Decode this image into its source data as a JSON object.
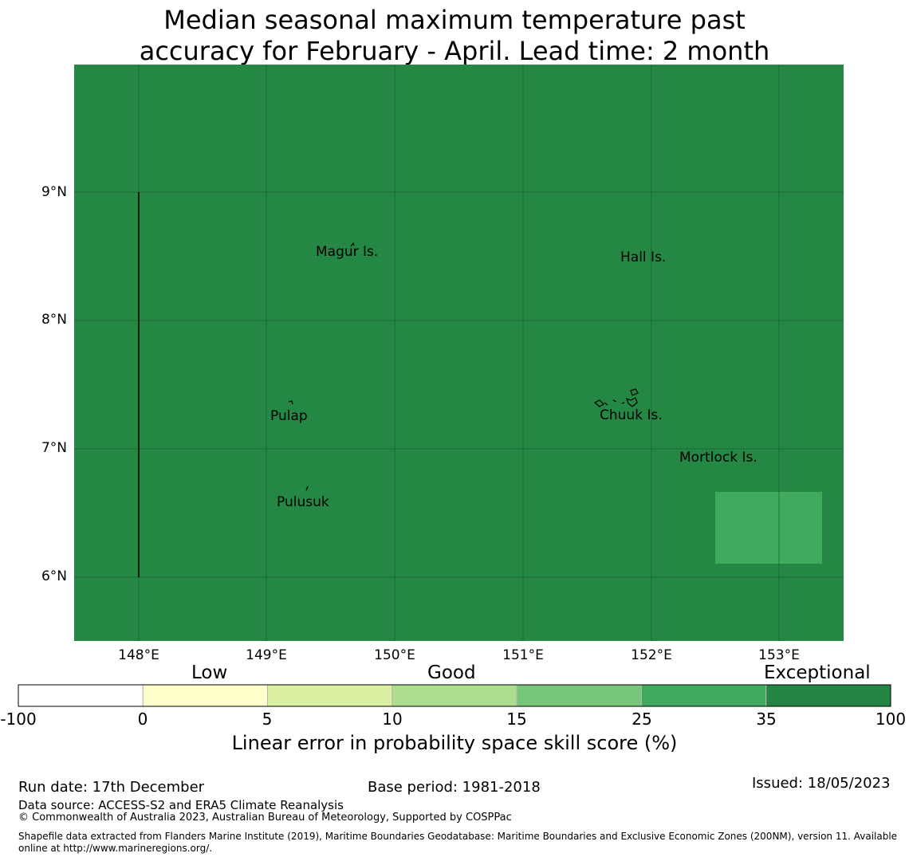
{
  "title": {
    "line1": "Median seasonal maximum temperature past",
    "line2": "accuracy for February - April. Lead time: 2 month"
  },
  "map": {
    "background_color": "#248744",
    "patch_color": "#40aa5d",
    "y_ticks": [
      "9°N",
      "8°N",
      "7°N",
      "6°N"
    ],
    "x_ticks": [
      "148°E",
      "149°E",
      "150°E",
      "151°E",
      "152°E",
      "153°E"
    ],
    "places": [
      "Magur Is.",
      "Hall Is.",
      "Pulap",
      "Chuuk Is.",
      "Mortlock Is.",
      "Pulusuk"
    ]
  },
  "legend": {
    "categories": [
      "Low",
      "Good",
      "Exceptional"
    ],
    "colors": [
      "#ffffff",
      "#ffffcc",
      "#d9f0a3",
      "#addd8e",
      "#78c679",
      "#41ab5d",
      "#238443"
    ],
    "ticks": [
      "-100",
      "0",
      "5",
      "10",
      "15",
      "25",
      "35",
      "100"
    ],
    "label": "Linear error in probability space skill score (%)"
  },
  "footer": {
    "run_date": "Run date: 17th December",
    "base_period": "Base period: 1981-2018",
    "issued": "Issued: 18/05/2023",
    "data_source": "Data source: ACCESS-S2 and ERA5 Climate Reanalysis",
    "copyright": "© Commonwealth of Australia 2023, Australian Bureau of Meteorology, Supported by COSPPac",
    "shapefile_line1": "Shapefile data extracted from Flanders Marine Institute (2019), Maritime Boundaries Geodatabase: Maritime Boundaries and Exclusive Economic Zones (200NM), version 11. Available",
    "shapefile_line2": "online at http://www.marineregions.org/."
  }
}
